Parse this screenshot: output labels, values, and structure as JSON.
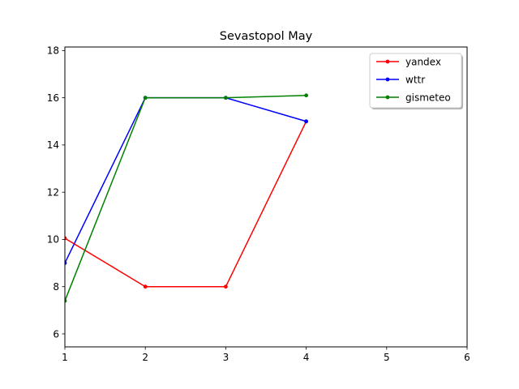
{
  "chart_data": {
    "type": "line",
    "title": "Sevastopol May",
    "xlabel": "",
    "ylabel": "",
    "xlim": [
      1,
      6
    ],
    "ylim": [
      5.45,
      18.15
    ],
    "xticks": [
      1,
      2,
      3,
      4,
      5,
      6
    ],
    "yticks": [
      6,
      8,
      10,
      12,
      14,
      16,
      18
    ],
    "grid": false,
    "legend_position": "top-right",
    "series": [
      {
        "name": "yandex",
        "color": "#ff0000",
        "x": [
          1,
          2,
          3,
          4
        ],
        "y": [
          10.05,
          8.0,
          8.0,
          15.0
        ]
      },
      {
        "name": "wttr",
        "color": "#0000ff",
        "x": [
          1,
          2,
          3,
          4
        ],
        "y": [
          9.0,
          16.0,
          16.0,
          15.0
        ]
      },
      {
        "name": "gismeteo",
        "color": "#008000",
        "x": [
          1,
          2,
          3,
          4
        ],
        "y": [
          7.4,
          16.0,
          16.0,
          16.1
        ]
      }
    ]
  }
}
